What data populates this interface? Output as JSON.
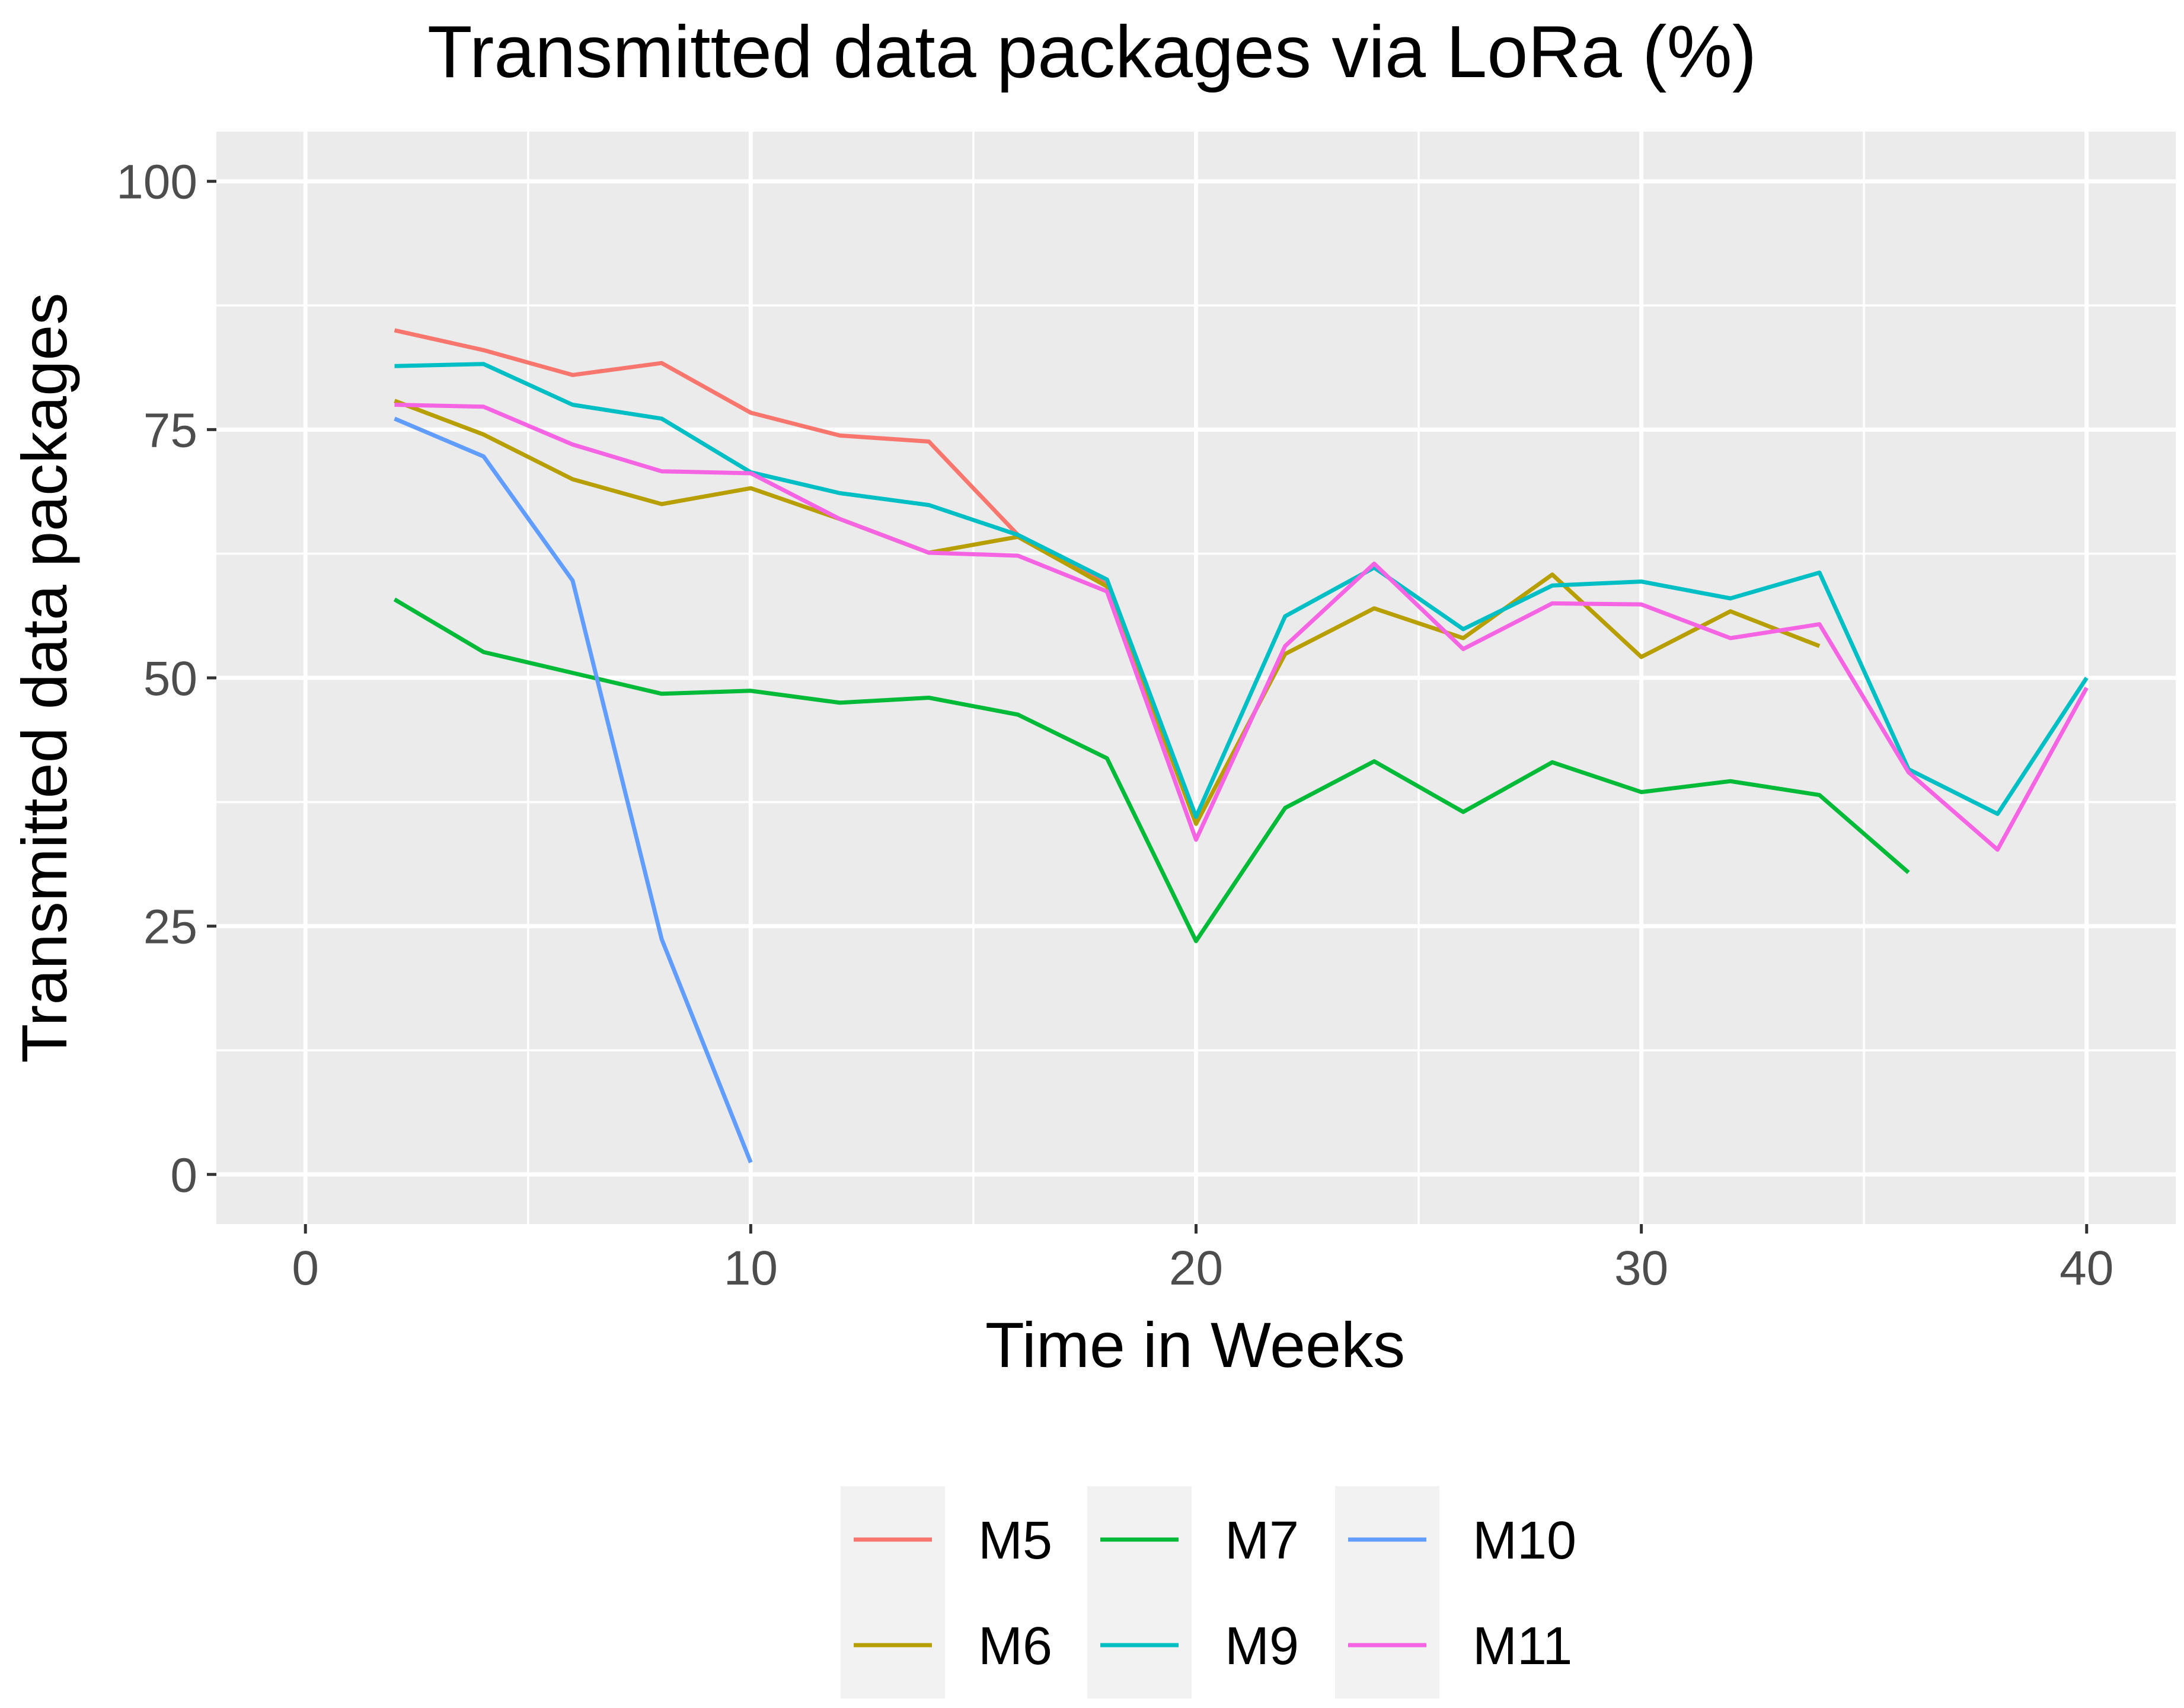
{
  "chart_data": {
    "type": "line",
    "title": "Transmitted data packages via LoRa (%)",
    "xlabel": "Time in Weeks",
    "ylabel": "Transmitted data packages",
    "xlim": [
      -2,
      42
    ],
    "ylim": [
      -5,
      105
    ],
    "x_ticks": [
      0,
      10,
      20,
      30,
      40
    ],
    "y_ticks": [
      0,
      25,
      50,
      75,
      100
    ],
    "x_tick_labels": [
      "0",
      "10",
      "20",
      "30",
      "40"
    ],
    "y_tick_labels": [
      "0",
      "25",
      "50",
      "75",
      "100"
    ],
    "grid": true,
    "legend_position": "bottom",
    "series": [
      {
        "name": "M5",
        "color": "#F8766D",
        "x": [
          2,
          4,
          6,
          8,
          10,
          12,
          14,
          16,
          18
        ],
        "y": [
          85,
          83,
          80.5,
          81.7,
          76.7,
          74.4,
          73.8,
          64.4,
          59.4
        ]
      },
      {
        "name": "M6",
        "color": "#B79F00",
        "x": [
          2,
          4,
          6,
          8,
          10,
          12,
          14,
          16,
          18,
          20,
          22,
          24,
          26,
          28,
          30,
          32,
          34
        ],
        "y": [
          77.9,
          74.5,
          70,
          67.5,
          69.1,
          66,
          62.6,
          64.2,
          59.2,
          35.3,
          52.4,
          57,
          54,
          60.4,
          52.1,
          56.7,
          53.2
        ]
      },
      {
        "name": "M7",
        "color": "#00BA38",
        "x": [
          2,
          4,
          6,
          8,
          10,
          12,
          14,
          16,
          18,
          20,
          22,
          24,
          26,
          28,
          30,
          32,
          34,
          36
        ],
        "y": [
          57.9,
          52.6,
          50.5,
          48.4,
          48.7,
          47.5,
          48,
          46.3,
          41.9,
          23.5,
          36.9,
          41.6,
          36.5,
          41.5,
          38.5,
          39.6,
          38.2,
          30.4
        ]
      },
      {
        "name": "M9",
        "color": "#00BFC4",
        "x": [
          2,
          4,
          6,
          8,
          10,
          12,
          14,
          16,
          18,
          20,
          22,
          24,
          26,
          28,
          30,
          32,
          34,
          36,
          38,
          40
        ],
        "y": [
          81.4,
          81.6,
          77.5,
          76.1,
          70.7,
          68.6,
          67.4,
          64.4,
          59.9,
          36,
          56.2,
          61.1,
          54.9,
          59.3,
          59.7,
          58,
          60.6,
          40.8,
          36.3,
          50
        ]
      },
      {
        "name": "M10",
        "color": "#619CFF",
        "x": [
          2,
          4,
          6,
          8,
          10
        ],
        "y": [
          76.1,
          72.3,
          59.8,
          23.7,
          1.2
        ]
      },
      {
        "name": "M11",
        "color": "#F564E3",
        "x": [
          2,
          4,
          6,
          8,
          10,
          12,
          14,
          16,
          18,
          20,
          22,
          24,
          26,
          28,
          30,
          32,
          34,
          36,
          38,
          40
        ],
        "y": [
          77.5,
          77.3,
          73.5,
          70.8,
          70.6,
          66,
          62.6,
          62.3,
          58.7,
          33.7,
          53.2,
          61.5,
          52.9,
          57.5,
          57.4,
          54,
          55.4,
          40.5,
          32.7,
          49
        ]
      }
    ]
  },
  "legend": {
    "items": [
      {
        "label": "M5",
        "color": "#F8766D"
      },
      {
        "label": "M6",
        "color": "#B79F00"
      },
      {
        "label": "M7",
        "color": "#00BA38"
      },
      {
        "label": "M9",
        "color": "#00BFC4"
      },
      {
        "label": "M10",
        "color": "#619CFF"
      },
      {
        "label": "M11",
        "color": "#F564E3"
      }
    ]
  }
}
